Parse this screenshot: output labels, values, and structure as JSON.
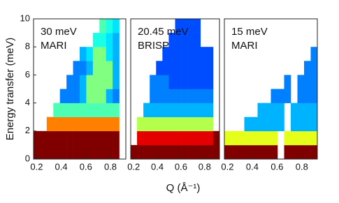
{
  "chart_data": [
    {
      "type": "heatmap",
      "colormap": "jet",
      "annotations": [
        "30 meV",
        "MARI"
      ],
      "ylabel": "Energy transfer (meV)",
      "xlim": [
        0.175,
        0.925
      ],
      "xticks": [
        0.2,
        0.4,
        0.6,
        0.8
      ],
      "ylim": [
        0,
        10
      ],
      "yticks": [
        0,
        2,
        4,
        6,
        8,
        10
      ],
      "z": [
        [
          1,
          1,
          1,
          1,
          1,
          1,
          1,
          1,
          1,
          1,
          1,
          1,
          1,
          null
        ],
        [
          1,
          1,
          1,
          1,
          1,
          1,
          1,
          1,
          1,
          1,
          1,
          1,
          1,
          null
        ],
        [
          null,
          null,
          0.75,
          0.75,
          0.75,
          0.75,
          0.75,
          0.75,
          0.75,
          0.75,
          0.75,
          0.75,
          0.75,
          null
        ],
        [
          null,
          null,
          null,
          0.45,
          0.45,
          0.45,
          0.45,
          0.45,
          0.45,
          0.45,
          0.45,
          0.45,
          0.45,
          null
        ],
        [
          null,
          null,
          null,
          null,
          0.25,
          0.25,
          0.25,
          0.3,
          0.5,
          0.5,
          0.5,
          0.3,
          0.25,
          null
        ],
        [
          null,
          null,
          null,
          null,
          null,
          0.25,
          0.25,
          0.3,
          0.5,
          0.5,
          0.5,
          0.5,
          0.3,
          null
        ],
        [
          null,
          null,
          null,
          null,
          null,
          null,
          0.25,
          0.25,
          0.3,
          0.5,
          0.5,
          0.5,
          0.3,
          null
        ],
        [
          null,
          null,
          null,
          null,
          null,
          null,
          null,
          0.3,
          0.35,
          0.5,
          0.5,
          0.35,
          0.3,
          null
        ],
        [
          null,
          null,
          null,
          null,
          null,
          null,
          null,
          null,
          null,
          0.4,
          0.4,
          0.35,
          0.3,
          null
        ],
        [
          null,
          null,
          null,
          null,
          null,
          null,
          null,
          null,
          null,
          null,
          0.45,
          0.4,
          0.35,
          null
        ]
      ]
    },
    {
      "type": "heatmap",
      "colormap": "jet",
      "annotations": [
        "20.45 meV",
        "BRISP"
      ],
      "xlabel": "Q (Å⁻¹)",
      "xlim": [
        0.175,
        0.925
      ],
      "xticks": [
        0.2,
        0.4,
        0.6,
        0.8
      ],
      "ylim": [
        0,
        10
      ],
      "z": [
        [
          1,
          1,
          1,
          1,
          1,
          1,
          1,
          1,
          1,
          1,
          1,
          1,
          1,
          1
        ],
        [
          null,
          0.9,
          0.9,
          0.9,
          0.9,
          0.9,
          0.9,
          0.9,
          0.9,
          0.9,
          0.9,
          0.9,
          0.9,
          1
        ],
        [
          null,
          0.55,
          0.55,
          0.55,
          0.55,
          0.55,
          0.55,
          0.55,
          0.55,
          0.55,
          0.55,
          0.55,
          0.55,
          null
        ],
        [
          null,
          null,
          0.3,
          0.3,
          0.3,
          0.3,
          0.3,
          0.3,
          0.3,
          0.3,
          0.3,
          0.3,
          0.3,
          null
        ],
        [
          null,
          null,
          null,
          0.25,
          0.25,
          0.25,
          0.25,
          0.25,
          0.25,
          0.25,
          0.25,
          0.25,
          0.25,
          null
        ],
        [
          null,
          null,
          null,
          0.25,
          0.25,
          0.25,
          0.2,
          0.2,
          0.2,
          0.2,
          0.2,
          0.2,
          0.2,
          null
        ],
        [
          null,
          null,
          null,
          null,
          0.2,
          0.2,
          0.2,
          0.2,
          0.2,
          0.2,
          0.2,
          0.2,
          0.2,
          null
        ],
        [
          null,
          null,
          null,
          null,
          null,
          0.2,
          0.2,
          0.2,
          0.2,
          0.2,
          0.2,
          0.2,
          0.2,
          null
        ],
        [
          null,
          null,
          null,
          null,
          null,
          null,
          0.2,
          0.2,
          0.2,
          0.2,
          0.2,
          null,
          null,
          null
        ],
        [
          null,
          null,
          null,
          null,
          null,
          null,
          null,
          0.2,
          0.2,
          0.2,
          0.2,
          null,
          null,
          null
        ]
      ]
    },
    {
      "type": "heatmap",
      "colormap": "jet",
      "annotations": [
        "15 meV",
        "MARI"
      ],
      "xlim": [
        0.175,
        0.925
      ],
      "xticks": [
        0.2,
        0.4,
        0.6,
        0.8
      ],
      "ylim": [
        0,
        10
      ],
      "z": [
        [
          1,
          1,
          1,
          1,
          1,
          1,
          1,
          1,
          null,
          1,
          1,
          1,
          1,
          1
        ],
        [
          0.6,
          0.6,
          0.6,
          0.6,
          0.6,
          0.6,
          0.6,
          0.6,
          null,
          0.6,
          0.6,
          0.6,
          0.6,
          0.6
        ],
        [
          null,
          null,
          null,
          0.3,
          0.3,
          0.3,
          0.3,
          0.3,
          0.3,
          null,
          0.3,
          0.3,
          0.3,
          0.3
        ],
        [
          null,
          null,
          null,
          null,
          null,
          0.3,
          0.3,
          0.3,
          0.3,
          null,
          0.3,
          0.3,
          0.3,
          0.3
        ],
        [
          null,
          null,
          null,
          null,
          null,
          null,
          null,
          0.25,
          0.25,
          0.25,
          null,
          0.25,
          0.25,
          0.25
        ],
        [
          null,
          null,
          null,
          null,
          null,
          null,
          null,
          null,
          null,
          0.25,
          null,
          0.25,
          0.25,
          0.25
        ],
        [
          null,
          null,
          null,
          null,
          null,
          null,
          null,
          null,
          null,
          null,
          null,
          null,
          0.25,
          0.25
        ],
        [
          null,
          null,
          null,
          null,
          null,
          null,
          null,
          null,
          null,
          null,
          null,
          null,
          null,
          0.25
        ],
        [
          null,
          null,
          null,
          null,
          null,
          null,
          null,
          null,
          null,
          null,
          null,
          null,
          null,
          null
        ],
        [
          null,
          null,
          null,
          null,
          null,
          null,
          null,
          null,
          null,
          null,
          null,
          null,
          null,
          null
        ]
      ]
    }
  ]
}
